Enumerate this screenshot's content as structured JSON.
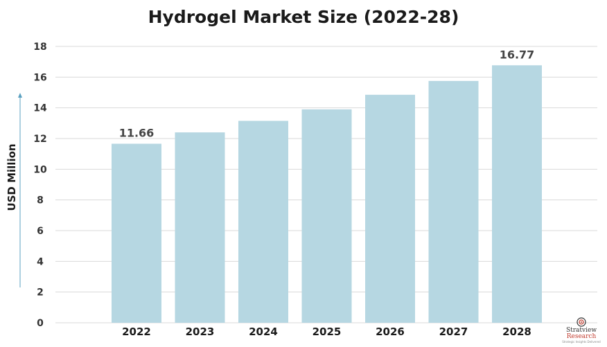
{
  "chart_data": {
    "type": "bar",
    "title": "Hydrogel Market Size (2022-28)",
    "xlabel": "",
    "ylabel": "USD Million",
    "categories": [
      "2022",
      "2023",
      "2024",
      "2025",
      "2026",
      "2027",
      "2028"
    ],
    "values": [
      11.66,
      12.4,
      13.15,
      13.9,
      14.85,
      15.75,
      16.77
    ],
    "data_labels": [
      "11.66",
      "",
      "",
      "",
      "",
      "",
      "16.77"
    ],
    "ylim": [
      0,
      18
    ],
    "yticks": [
      0,
      2,
      4,
      6,
      8,
      10,
      12,
      14,
      16,
      18
    ],
    "grid": true,
    "colors": {
      "bar": "#b6d7e2",
      "axis_arrow": "#5aa0c0"
    }
  },
  "logo": {
    "word1": "Stratview",
    "word2": "Research",
    "tagline": "Strategic Insights Delivered"
  }
}
